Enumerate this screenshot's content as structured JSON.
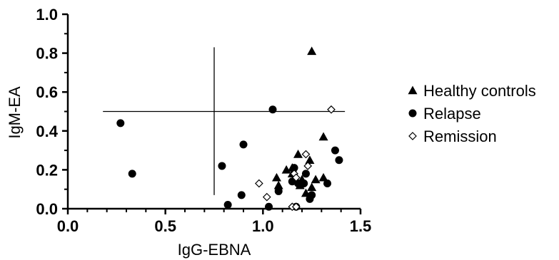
{
  "chart_data": {
    "type": "scatter",
    "xlabel": "IgG-EBNA",
    "ylabel": "IgM-EA",
    "xlim": [
      0,
      1.5
    ],
    "ylim": [
      0,
      1.0
    ],
    "xticks": [
      "0.0",
      "0.5",
      "1.0",
      "1.5"
    ],
    "yticks": [
      "0.0",
      "0.2",
      "0.4",
      "0.6",
      "0.8",
      "1.0"
    ],
    "xtick_values": [
      0,
      0.5,
      1.0,
      1.5
    ],
    "ytick_values": [
      0,
      0.2,
      0.4,
      0.6,
      0.8,
      1.0
    ],
    "legend_position": "right",
    "reference_lines": {
      "horizontal": {
        "y": 0.5,
        "x_from": 0.18,
        "x_to": 1.42
      },
      "vertical": {
        "x": 0.75,
        "y_from": 0.07,
        "y_to": 0.83
      }
    },
    "series": [
      {
        "name": "Healthy controls",
        "marker": "triangle",
        "points": [
          [
            1.25,
            0.81
          ],
          [
            1.31,
            0.37
          ],
          [
            1.18,
            0.28
          ],
          [
            1.24,
            0.25
          ],
          [
            1.15,
            0.21
          ],
          [
            1.12,
            0.2
          ],
          [
            1.07,
            0.16
          ],
          [
            1.08,
            0.12
          ],
          [
            1.2,
            0.15
          ],
          [
            1.27,
            0.15
          ],
          [
            1.31,
            0.16
          ],
          [
            1.22,
            0.08
          ],
          [
            1.25,
            0.11
          ],
          [
            1.15,
            0.18
          ],
          [
            1.19,
            0.12
          ]
        ]
      },
      {
        "name": "Relapse",
        "marker": "circle",
        "points": [
          [
            0.27,
            0.44
          ],
          [
            0.33,
            0.18
          ],
          [
            1.05,
            0.51
          ],
          [
            0.9,
            0.33
          ],
          [
            0.79,
            0.22
          ],
          [
            0.82,
            0.02
          ],
          [
            0.89,
            0.07
          ],
          [
            1.03,
            0.01
          ],
          [
            1.08,
            0.09
          ],
          [
            1.15,
            0.14
          ],
          [
            1.16,
            0.21
          ],
          [
            1.18,
            0.13
          ],
          [
            1.21,
            0.13
          ],
          [
            1.22,
            0.18
          ],
          [
            1.24,
            0.05
          ],
          [
            1.25,
            0.07
          ],
          [
            1.33,
            0.13
          ],
          [
            1.37,
            0.3
          ],
          [
            1.39,
            0.25
          ],
          [
            1.17,
            0.01
          ]
        ]
      },
      {
        "name": "Remission",
        "marker": "diamond",
        "points": [
          [
            1.35,
            0.51
          ],
          [
            1.22,
            0.28
          ],
          [
            1.23,
            0.22
          ],
          [
            1.16,
            0.18
          ],
          [
            1.17,
            0.16
          ],
          [
            0.98,
            0.13
          ],
          [
            1.02,
            0.06
          ],
          [
            1.15,
            0.01
          ],
          [
            1.17,
            0.01
          ]
        ]
      }
    ]
  }
}
